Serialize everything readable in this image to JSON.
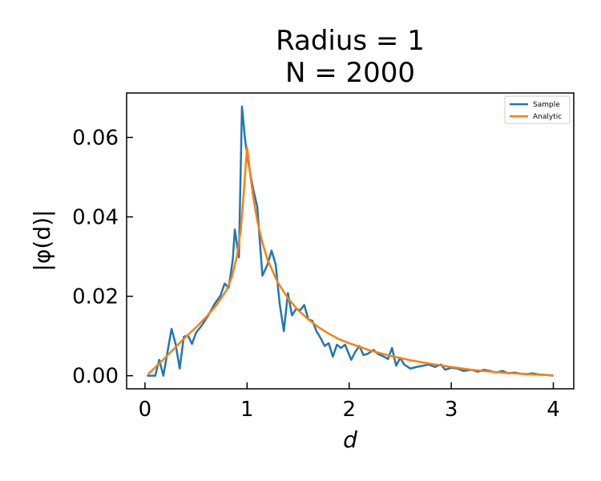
{
  "chart_data": {
    "type": "line",
    "title": "Radius = 1",
    "subtitle": "N = 2000",
    "xlabel": "d",
    "ylabel": "|φ(d)|",
    "xlim": [
      -0.18,
      4.2
    ],
    "ylim": [
      -0.0033,
      0.0712
    ],
    "xticks": [
      0,
      1,
      2,
      3,
      4
    ],
    "xtick_labels": [
      "0",
      "1",
      "2",
      "3",
      "4"
    ],
    "yticks": [
      0.0,
      0.02,
      0.04,
      0.06
    ],
    "ytick_labels": [
      "0.00",
      "0.02",
      "0.04",
      "0.06"
    ],
    "grid": false,
    "legend_position": "top-right",
    "series": [
      {
        "name": "Sample",
        "color": "#1f77b4",
        "points": [
          [
            0.02,
            0.0
          ],
          [
            0.1,
            0.0
          ],
          [
            0.14,
            0.004
          ],
          [
            0.18,
            0.0
          ],
          [
            0.26,
            0.0118
          ],
          [
            0.3,
            0.008
          ],
          [
            0.34,
            0.0018
          ],
          [
            0.38,
            0.0098
          ],
          [
            0.42,
            0.0102
          ],
          [
            0.46,
            0.008
          ],
          [
            0.5,
            0.0108
          ],
          [
            0.56,
            0.0128
          ],
          [
            0.62,
            0.0152
          ],
          [
            0.68,
            0.018
          ],
          [
            0.74,
            0.0202
          ],
          [
            0.78,
            0.0232
          ],
          [
            0.82,
            0.0222
          ],
          [
            0.86,
            0.0292
          ],
          [
            0.88,
            0.0368
          ],
          [
            0.92,
            0.0298
          ],
          [
            0.95,
            0.0678
          ],
          [
            0.98,
            0.0595
          ],
          [
            1.02,
            0.0525
          ],
          [
            1.06,
            0.047
          ],
          [
            1.1,
            0.0425
          ],
          [
            1.15,
            0.0252
          ],
          [
            1.2,
            0.028
          ],
          [
            1.24,
            0.0315
          ],
          [
            1.28,
            0.028
          ],
          [
            1.32,
            0.018
          ],
          [
            1.36,
            0.0112
          ],
          [
            1.4,
            0.0208
          ],
          [
            1.44,
            0.0152
          ],
          [
            1.48,
            0.0168
          ],
          [
            1.52,
            0.0165
          ],
          [
            1.56,
            0.0178
          ],
          [
            1.6,
            0.0142
          ],
          [
            1.64,
            0.0138
          ],
          [
            1.68,
            0.0112
          ],
          [
            1.72,
            0.0095
          ],
          [
            1.76,
            0.0075
          ],
          [
            1.8,
            0.0082
          ],
          [
            1.84,
            0.0048
          ],
          [
            1.88,
            0.0078
          ],
          [
            1.92,
            0.007
          ],
          [
            1.96,
            0.0078
          ],
          [
            2.02,
            0.004
          ],
          [
            2.06,
            0.006
          ],
          [
            2.1,
            0.0075
          ],
          [
            2.14,
            0.0052
          ],
          [
            2.18,
            0.0055
          ],
          [
            2.24,
            0.0065
          ],
          [
            2.28,
            0.0055
          ],
          [
            2.34,
            0.0048
          ],
          [
            2.38,
            0.0042
          ],
          [
            2.42,
            0.007
          ],
          [
            2.46,
            0.0025
          ],
          [
            2.5,
            0.0045
          ],
          [
            2.54,
            0.0028
          ],
          [
            2.6,
            0.0018
          ],
          [
            2.66,
            0.0022
          ],
          [
            2.72,
            0.0025
          ],
          [
            2.78,
            0.0028
          ],
          [
            2.84,
            0.0022
          ],
          [
            2.9,
            0.0028
          ],
          [
            2.94,
            0.0015
          ],
          [
            3.0,
            0.002
          ],
          [
            3.06,
            0.0018
          ],
          [
            3.12,
            0.0012
          ],
          [
            3.2,
            0.0015
          ],
          [
            3.26,
            0.001
          ],
          [
            3.32,
            0.0015
          ],
          [
            3.38,
            0.0012
          ],
          [
            3.44,
            0.0008
          ],
          [
            3.5,
            0.0012
          ],
          [
            3.56,
            0.0006
          ],
          [
            3.62,
            0.0008
          ],
          [
            3.68,
            0.0005
          ],
          [
            3.74,
            0.0004
          ],
          [
            3.8,
            0.0006
          ],
          [
            3.86,
            0.0003
          ],
          [
            3.92,
            0.0002
          ],
          [
            4.0,
            0.0
          ]
        ]
      },
      {
        "name": "Analytic",
        "color": "#ff7f0e",
        "points": [
          [
            0.03,
            0.0004
          ],
          [
            0.1,
            0.0021
          ],
          [
            0.2,
            0.0046
          ],
          [
            0.3,
            0.0072
          ],
          [
            0.4,
            0.0098
          ],
          [
            0.5,
            0.0122
          ],
          [
            0.6,
            0.0148
          ],
          [
            0.7,
            0.0178
          ],
          [
            0.8,
            0.0216
          ],
          [
            0.85,
            0.0248
          ],
          [
            0.9,
            0.03
          ],
          [
            0.94,
            0.037
          ],
          [
            0.97,
            0.047
          ],
          [
            1.0,
            0.0575
          ],
          [
            1.03,
            0.051
          ],
          [
            1.06,
            0.045
          ],
          [
            1.1,
            0.039
          ],
          [
            1.15,
            0.0335
          ],
          [
            1.2,
            0.0292
          ],
          [
            1.3,
            0.0235
          ],
          [
            1.4,
            0.0195
          ],
          [
            1.5,
            0.0165
          ],
          [
            1.6,
            0.0142
          ],
          [
            1.7,
            0.0122
          ],
          [
            1.8,
            0.0106
          ],
          [
            1.9,
            0.0092
          ],
          [
            2.0,
            0.0082
          ],
          [
            2.2,
            0.0064
          ],
          [
            2.4,
            0.005
          ],
          [
            2.6,
            0.0039
          ],
          [
            2.8,
            0.003
          ],
          [
            3.0,
            0.0022
          ],
          [
            3.2,
            0.0015
          ],
          [
            3.4,
            0.001
          ],
          [
            3.6,
            0.0006
          ],
          [
            3.8,
            0.0003
          ],
          [
            4.0,
            0.0001
          ]
        ]
      }
    ]
  }
}
